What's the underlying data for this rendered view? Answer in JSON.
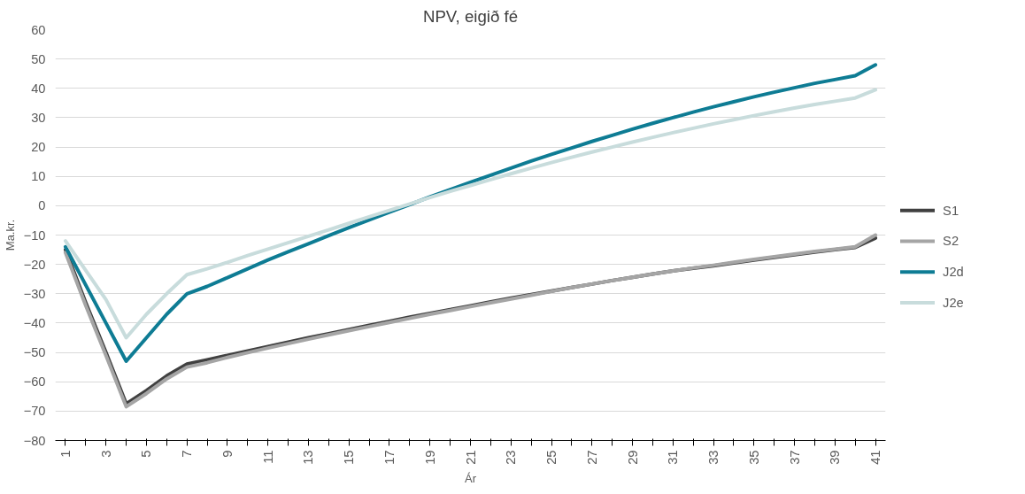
{
  "chart_data": {
    "type": "line",
    "title": "NPV, eigið fé",
    "xlabel": "Ár",
    "ylabel": "Ma.kr.",
    "categories": [
      "1",
      null,
      "3",
      null,
      "5",
      null,
      "7",
      null,
      "9",
      null,
      "11",
      null,
      "13",
      null,
      "15",
      null,
      "17",
      null,
      "19",
      null,
      "21",
      null,
      "23",
      null,
      "25",
      null,
      "27",
      null,
      "29",
      null,
      "31",
      null,
      "33",
      null,
      "35",
      null,
      "37",
      null,
      "39",
      null,
      "41"
    ],
    "ylim": [
      -80,
      60
    ],
    "yticks": [
      -80,
      -70,
      -60,
      -50,
      -40,
      -30,
      -20,
      -10,
      0,
      10,
      20,
      30,
      40,
      50,
      60
    ],
    "grid": "y",
    "legend": "right",
    "line_style": "solid",
    "series": [
      {
        "name": "S1",
        "color": "#404040",
        "values": [
          -15,
          -33,
          -50,
          -67.5,
          -63,
          -58,
          -54,
          -52.5,
          -51,
          -49.5,
          -48,
          -46.5,
          -45,
          -43.6,
          -42.2,
          -40.8,
          -39.4,
          -38,
          -36.7,
          -35.4,
          -34.1,
          -32.8,
          -31.5,
          -30.3,
          -29.1,
          -27.9,
          -26.7,
          -25.5,
          -24.4,
          -23.3,
          -22.2,
          -21.3,
          -20.5,
          -19.5,
          -18.5,
          -17.6,
          -16.7,
          -15.8,
          -15,
          -14.2,
          -11
        ]
      },
      {
        "name": "S2",
        "color": "#a5a5a5",
        "values": [
          -16,
          -34,
          -51,
          -68.5,
          -64,
          -59,
          -55,
          -53.5,
          -51.7,
          -50.1,
          -48.5,
          -47,
          -45.5,
          -44,
          -42.6,
          -41.2,
          -39.8,
          -38.4,
          -37,
          -35.7,
          -34.4,
          -33.1,
          -31.8,
          -30.5,
          -29.2,
          -27.9,
          -26.7,
          -25.5,
          -24.4,
          -23.3,
          -22.2,
          -21.2,
          -20.3,
          -19.3,
          -18.3,
          -17.4,
          -16.5,
          -15.6,
          -14.8,
          -14,
          -10
        ]
      },
      {
        "name": "J2d",
        "color": "#0e7c94",
        "values": [
          -14,
          -27,
          -40,
          -53,
          -45,
          -37,
          -30,
          -27.5,
          -24.5,
          -21.5,
          -18.5,
          -15.7,
          -13,
          -10.2,
          -7.5,
          -4.8,
          -2.2,
          0.4,
          3,
          5.5,
          8,
          10.4,
          12.8,
          15.2,
          17.5,
          19.7,
          21.9,
          24,
          26.1,
          28.1,
          30,
          31.9,
          33.7,
          35.4,
          37.1,
          38.7,
          40.2,
          41.7,
          43,
          44.3,
          48
        ]
      },
      {
        "name": "J2e",
        "color": "#c8dcdc",
        "values": [
          -12,
          -22,
          -32,
          -45,
          -37,
          -30,
          -23.5,
          -21.5,
          -19.3,
          -17,
          -14.8,
          -12.6,
          -10.4,
          -8.2,
          -6,
          -3.8,
          -1.6,
          0.6,
          2.8,
          4.9,
          6.9,
          8.9,
          10.9,
          12.8,
          14.7,
          16.5,
          18.3,
          20,
          21.7,
          23.3,
          24.9,
          26.4,
          27.9,
          29.3,
          30.7,
          32,
          33.3,
          34.5,
          35.6,
          36.7,
          39.5
        ]
      }
    ]
  }
}
